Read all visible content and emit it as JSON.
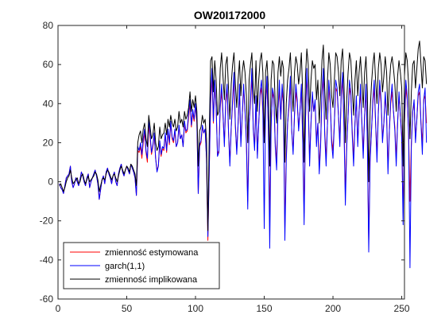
{
  "chart_data": {
    "type": "line",
    "title": "OW20I172000",
    "xlabel": "",
    "ylabel": "",
    "xlim": [
      0,
      252
    ],
    "ylim": [
      -60,
      80
    ],
    "xticks": [
      0,
      50,
      100,
      150,
      200,
      250
    ],
    "yticks": [
      -60,
      -40,
      -20,
      0,
      20,
      40,
      60,
      80
    ],
    "grid": false,
    "legend_position": "bottom-left",
    "x_start": 1,
    "series": [
      {
        "name": "zmienność estymowana",
        "color": "#ff0000",
        "values": [
          -1,
          -3,
          -4,
          -6,
          -2,
          2,
          3,
          4,
          8,
          0,
          -3,
          -1,
          2,
          0,
          -2,
          1,
          5,
          3,
          0,
          -2,
          2,
          4,
          -3,
          0,
          2,
          4,
          6,
          3,
          -1,
          -9,
          -4,
          1,
          3,
          -1,
          5,
          7,
          4,
          2,
          -1,
          3,
          5,
          0,
          -2,
          4,
          7,
          9,
          5,
          3,
          6,
          8,
          6,
          4,
          9,
          7,
          5,
          2,
          -7,
          16,
          15,
          18,
          12,
          20,
          25,
          15,
          10,
          30,
          22,
          14,
          18,
          24,
          12,
          6,
          8,
          20,
          13,
          17,
          16,
          24,
          15,
          26,
          19,
          30,
          22,
          20,
          26,
          18,
          20,
          28,
          22,
          24,
          18,
          30,
          25,
          26,
          33,
          40,
          28,
          35,
          31,
          39,
          30,
          -6,
          18,
          20,
          28,
          25,
          27,
          12,
          -30,
          6,
          40,
          54,
          30,
          50,
          38,
          14,
          16,
          38,
          46,
          34,
          20,
          40,
          48,
          26,
          10,
          28,
          40,
          52,
          28,
          16,
          30,
          46,
          20,
          34,
          48,
          36,
          22,
          -10,
          30,
          40,
          54,
          28,
          18,
          42,
          14,
          30,
          44,
          48,
          36,
          22,
          40,
          50,
          28,
          -20,
          30,
          46,
          42,
          20,
          10,
          36,
          48,
          32,
          46,
          40,
          -24,
          14,
          30,
          38,
          50,
          26,
          16,
          34,
          46,
          40,
          28,
          36,
          48,
          22,
          -16,
          32,
          54,
          40,
          12,
          30,
          44,
          36,
          40,
          20,
          30,
          8,
          20,
          44,
          54,
          26,
          12,
          30,
          48,
          40,
          22,
          16,
          30,
          48,
          46,
          34,
          20,
          44,
          52,
          30,
          -6,
          20,
          34,
          48,
          44,
          26,
          12,
          30,
          42,
          20,
          36,
          46,
          30,
          16,
          34,
          46,
          22,
          -30,
          12,
          26,
          40,
          48,
          30,
          14,
          36,
          48,
          40,
          22,
          30,
          44,
          34,
          8,
          26,
          40,
          46,
          36,
          28,
          12,
          30,
          44,
          34,
          24,
          -16,
          30,
          48,
          42,
          26,
          -10,
          20,
          36,
          40,
          22,
          32,
          44,
          46,
          30,
          20,
          42,
          44,
          30
        ],
        "visible_from_index": 0
      },
      {
        "name": "garch(1,1)",
        "color": "#0000ff",
        "values": [
          -1,
          -3,
          -4,
          -6,
          -2,
          2,
          3,
          4,
          8,
          0,
          -3,
          -1,
          2,
          0,
          -2,
          1,
          5,
          3,
          0,
          -2,
          2,
          4,
          -3,
          0,
          2,
          4,
          6,
          3,
          -1,
          -9,
          -4,
          1,
          3,
          -1,
          5,
          7,
          4,
          2,
          -1,
          3,
          5,
          0,
          -2,
          4,
          7,
          9,
          5,
          3,
          6,
          8,
          6,
          4,
          9,
          7,
          5,
          2,
          -7,
          18,
          16,
          20,
          14,
          22,
          27,
          16,
          12,
          32,
          24,
          15,
          19,
          25,
          12,
          5,
          8,
          21,
          14,
          18,
          17,
          25,
          16,
          27,
          20,
          31,
          23,
          21,
          27,
          18,
          20,
          29,
          22,
          24,
          18,
          31,
          26,
          27,
          35,
          42,
          29,
          37,
          32,
          40,
          31,
          -6,
          19,
          21,
          29,
          25,
          27,
          12,
          -28,
          6,
          43,
          58,
          31,
          52,
          39,
          13,
          15,
          39,
          50,
          35,
          18,
          42,
          50,
          26,
          8,
          28,
          42,
          56,
          29,
          14,
          30,
          50,
          18,
          34,
          50,
          37,
          20,
          -14,
          30,
          42,
          58,
          27,
          16,
          44,
          12,
          30,
          46,
          52,
          37,
          -24,
          40,
          54,
          27,
          -34,
          28,
          48,
          44,
          18,
          6,
          36,
          52,
          32,
          50,
          40,
          -30,
          10,
          30,
          40,
          54,
          26,
          14,
          34,
          50,
          42,
          26,
          36,
          50,
          20,
          -22,
          32,
          58,
          40,
          8,
          30,
          46,
          36,
          42,
          18,
          30,
          4,
          18,
          46,
          58,
          24,
          8,
          30,
          52,
          42,
          20,
          12,
          30,
          52,
          48,
          34,
          18,
          46,
          56,
          28,
          -12,
          18,
          34,
          52,
          46,
          24,
          8,
          30,
          44,
          18,
          36,
          50,
          30,
          12,
          34,
          50,
          20,
          -36,
          10,
          26,
          42,
          52,
          30,
          10,
          36,
          52,
          42,
          20,
          30,
          46,
          34,
          4,
          26,
          42,
          50,
          36,
          26,
          8,
          30,
          46,
          34,
          22,
          -22,
          30,
          52,
          44,
          24,
          -44,
          18,
          36,
          42,
          20,
          32,
          46,
          50,
          30,
          14,
          42,
          48,
          20
        ],
        "visible_from_index": 0
      },
      {
        "name": "zmienność implikowana",
        "color": "#000000",
        "values": [
          -2,
          -1,
          -3,
          -5,
          -3,
          0,
          2,
          3,
          6,
          2,
          -1,
          0,
          1,
          2,
          -1,
          0,
          3,
          4,
          1,
          -1,
          1,
          3,
          0,
          1,
          2,
          3,
          5,
          4,
          1,
          -5,
          -2,
          1,
          2,
          1,
          4,
          6,
          5,
          3,
          1,
          3,
          4,
          2,
          0,
          3,
          6,
          8,
          6,
          4,
          6,
          8,
          7,
          5,
          9,
          8,
          6,
          4,
          -2,
          20,
          24,
          26,
          20,
          27,
          30,
          22,
          18,
          34,
          28,
          22,
          24,
          30,
          20,
          16,
          18,
          28,
          22,
          24,
          25,
          30,
          24,
          32,
          28,
          34,
          30,
          28,
          32,
          26,
          28,
          36,
          30,
          32,
          28,
          36,
          32,
          34,
          38,
          46,
          36,
          42,
          38,
          44,
          36,
          8,
          26,
          28,
          34,
          30,
          32,
          22,
          -25,
          24,
          62,
          64,
          46,
          62,
          52,
          34,
          36,
          58,
          66,
          54,
          42,
          60,
          64,
          48,
          32,
          50,
          60,
          66,
          50,
          38,
          52,
          62,
          44,
          56,
          62,
          56,
          44,
          20,
          52,
          60,
          66,
          48,
          40,
          62,
          36,
          52,
          62,
          66,
          56,
          20,
          56,
          62,
          48,
          8,
          52,
          62,
          60,
          40,
          30,
          56,
          64,
          54,
          62,
          58,
          10,
          40,
          52,
          58,
          66,
          50,
          36,
          56,
          64,
          60,
          50,
          56,
          66,
          44,
          10,
          54,
          68,
          60,
          36,
          52,
          62,
          58,
          60,
          42,
          52,
          30,
          44,
          62,
          70,
          48,
          32,
          52,
          66,
          60,
          44,
          38,
          52,
          66,
          64,
          56,
          44,
          62,
          68,
          50,
          20,
          42,
          56,
          66,
          62,
          48,
          34,
          52,
          62,
          44,
          56,
          64,
          52,
          38,
          56,
          64,
          46,
          0,
          36,
          50,
          60,
          66,
          52,
          40,
          58,
          66,
          60,
          46,
          54,
          64,
          56,
          34,
          50,
          60,
          64,
          58,
          50,
          36,
          54,
          62,
          56,
          48,
          8,
          54,
          66,
          62,
          50,
          22,
          46,
          60,
          62,
          48,
          58,
          68,
          72,
          60,
          48,
          64,
          62,
          50
        ],
        "visible_from_index": 0
      }
    ]
  }
}
